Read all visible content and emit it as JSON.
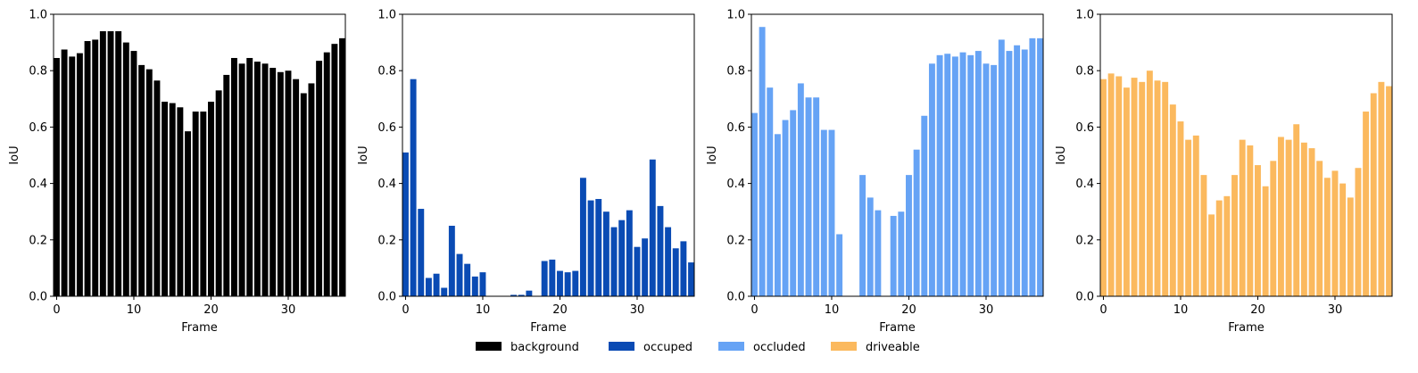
{
  "legend": {
    "placement": "bottom-center",
    "items": [
      {
        "label": "background",
        "color": "#000000"
      },
      {
        "label": "occuped",
        "color": "#0a4bb4"
      },
      {
        "label": "occluded",
        "color": "#66a3f5"
      },
      {
        "label": "driveable",
        "color": "#fbb95e"
      }
    ]
  },
  "chart_data": [
    {
      "type": "bar",
      "xlabel": "Frame",
      "ylabel": "IoU",
      "ylim": [
        0,
        1
      ],
      "xlim": [
        -0.4,
        37.4
      ],
      "xticks": [
        "0",
        "10",
        "20",
        "30"
      ],
      "yticks": [
        "0.0",
        "0.2",
        "0.4",
        "0.6",
        "0.8",
        "1.0"
      ],
      "grid": false,
      "color": "#000000",
      "x": [
        0,
        1,
        2,
        3,
        4,
        5,
        6,
        7,
        8,
        9,
        10,
        11,
        12,
        13,
        14,
        15,
        16,
        17,
        18,
        19,
        20,
        21,
        22,
        23,
        24,
        25,
        26,
        27,
        28,
        29,
        30,
        31,
        32,
        33,
        34,
        35,
        36,
        37
      ],
      "values": [
        0.845,
        0.875,
        0.85,
        0.862,
        0.905,
        0.91,
        0.94,
        0.94,
        0.94,
        0.9,
        0.87,
        0.82,
        0.805,
        0.765,
        0.69,
        0.685,
        0.67,
        0.585,
        0.655,
        0.655,
        0.69,
        0.73,
        0.785,
        0.845,
        0.825,
        0.845,
        0.832,
        0.825,
        0.81,
        0.795,
        0.8,
        0.77,
        0.72,
        0.755,
        0.835,
        0.865,
        0.895,
        0.915
      ]
    },
    {
      "type": "bar",
      "xlabel": "Frame",
      "ylabel": "IoU",
      "ylim": [
        0,
        1
      ],
      "xlim": [
        -0.4,
        37.4
      ],
      "xticks": [
        "0",
        "10",
        "20",
        "30"
      ],
      "yticks": [
        "0.0",
        "0.2",
        "0.4",
        "0.6",
        "0.8",
        "1.0"
      ],
      "grid": false,
      "color": "#0a4bb4",
      "x": [
        0,
        1,
        2,
        3,
        4,
        5,
        6,
        7,
        8,
        9,
        10,
        11,
        12,
        13,
        14,
        15,
        16,
        17,
        18,
        19,
        20,
        21,
        22,
        23,
        24,
        25,
        26,
        27,
        28,
        29,
        30,
        31,
        32,
        33,
        34,
        35,
        36,
        37
      ],
      "values": [
        0.51,
        0.77,
        0.31,
        0.065,
        0.08,
        0.03,
        0.25,
        0.15,
        0.115,
        0.07,
        0.085,
        0.0,
        0.0,
        0.0,
        0.005,
        0.005,
        0.02,
        0.0,
        0.125,
        0.13,
        0.09,
        0.085,
        0.09,
        0.42,
        0.34,
        0.345,
        0.3,
        0.245,
        0.27,
        0.305,
        0.175,
        0.205,
        0.485,
        0.32,
        0.245,
        0.17,
        0.195,
        0.12
      ]
    },
    {
      "type": "bar",
      "xlabel": "Frame",
      "ylabel": "IoU",
      "ylim": [
        0,
        1
      ],
      "xlim": [
        -0.4,
        37.4
      ],
      "xticks": [
        "0",
        "10",
        "20",
        "30"
      ],
      "yticks": [
        "0.0",
        "0.2",
        "0.4",
        "0.6",
        "0.8",
        "1.0"
      ],
      "grid": false,
      "color": "#66a3f5",
      "x": [
        0,
        1,
        2,
        3,
        4,
        5,
        6,
        7,
        8,
        9,
        10,
        11,
        12,
        13,
        14,
        15,
        16,
        17,
        18,
        19,
        20,
        21,
        22,
        23,
        24,
        25,
        26,
        27,
        28,
        29,
        30,
        31,
        32,
        33,
        34,
        35,
        36,
        37
      ],
      "values": [
        0.65,
        0.955,
        0.74,
        0.575,
        0.625,
        0.66,
        0.755,
        0.705,
        0.705,
        0.59,
        0.59,
        0.22,
        0.0,
        0.0,
        0.43,
        0.35,
        0.305,
        0.0,
        0.285,
        0.3,
        0.43,
        0.52,
        0.64,
        0.825,
        0.855,
        0.86,
        0.85,
        0.865,
        0.855,
        0.87,
        0.825,
        0.82,
        0.91,
        0.87,
        0.89,
        0.875,
        0.915,
        0.915
      ]
    },
    {
      "type": "bar",
      "xlabel": "Frame",
      "ylabel": "IoU",
      "ylim": [
        0,
        1
      ],
      "xlim": [
        -0.4,
        37.4
      ],
      "xticks": [
        "0",
        "10",
        "20",
        "30"
      ],
      "yticks": [
        "0.0",
        "0.2",
        "0.4",
        "0.6",
        "0.8",
        "1.0"
      ],
      "grid": false,
      "color": "#fbb95e",
      "x": [
        0,
        1,
        2,
        3,
        4,
        5,
        6,
        7,
        8,
        9,
        10,
        11,
        12,
        13,
        14,
        15,
        16,
        17,
        18,
        19,
        20,
        21,
        22,
        23,
        24,
        25,
        26,
        27,
        28,
        29,
        30,
        31,
        32,
        33,
        34,
        35,
        36,
        37
      ],
      "values": [
        0.77,
        0.79,
        0.78,
        0.74,
        0.775,
        0.76,
        0.8,
        0.765,
        0.76,
        0.68,
        0.62,
        0.555,
        0.57,
        0.43,
        0.29,
        0.34,
        0.355,
        0.43,
        0.555,
        0.535,
        0.465,
        0.39,
        0.48,
        0.565,
        0.555,
        0.61,
        0.545,
        0.525,
        0.48,
        0.42,
        0.445,
        0.4,
        0.35,
        0.455,
        0.655,
        0.72,
        0.76,
        0.745
      ]
    }
  ]
}
